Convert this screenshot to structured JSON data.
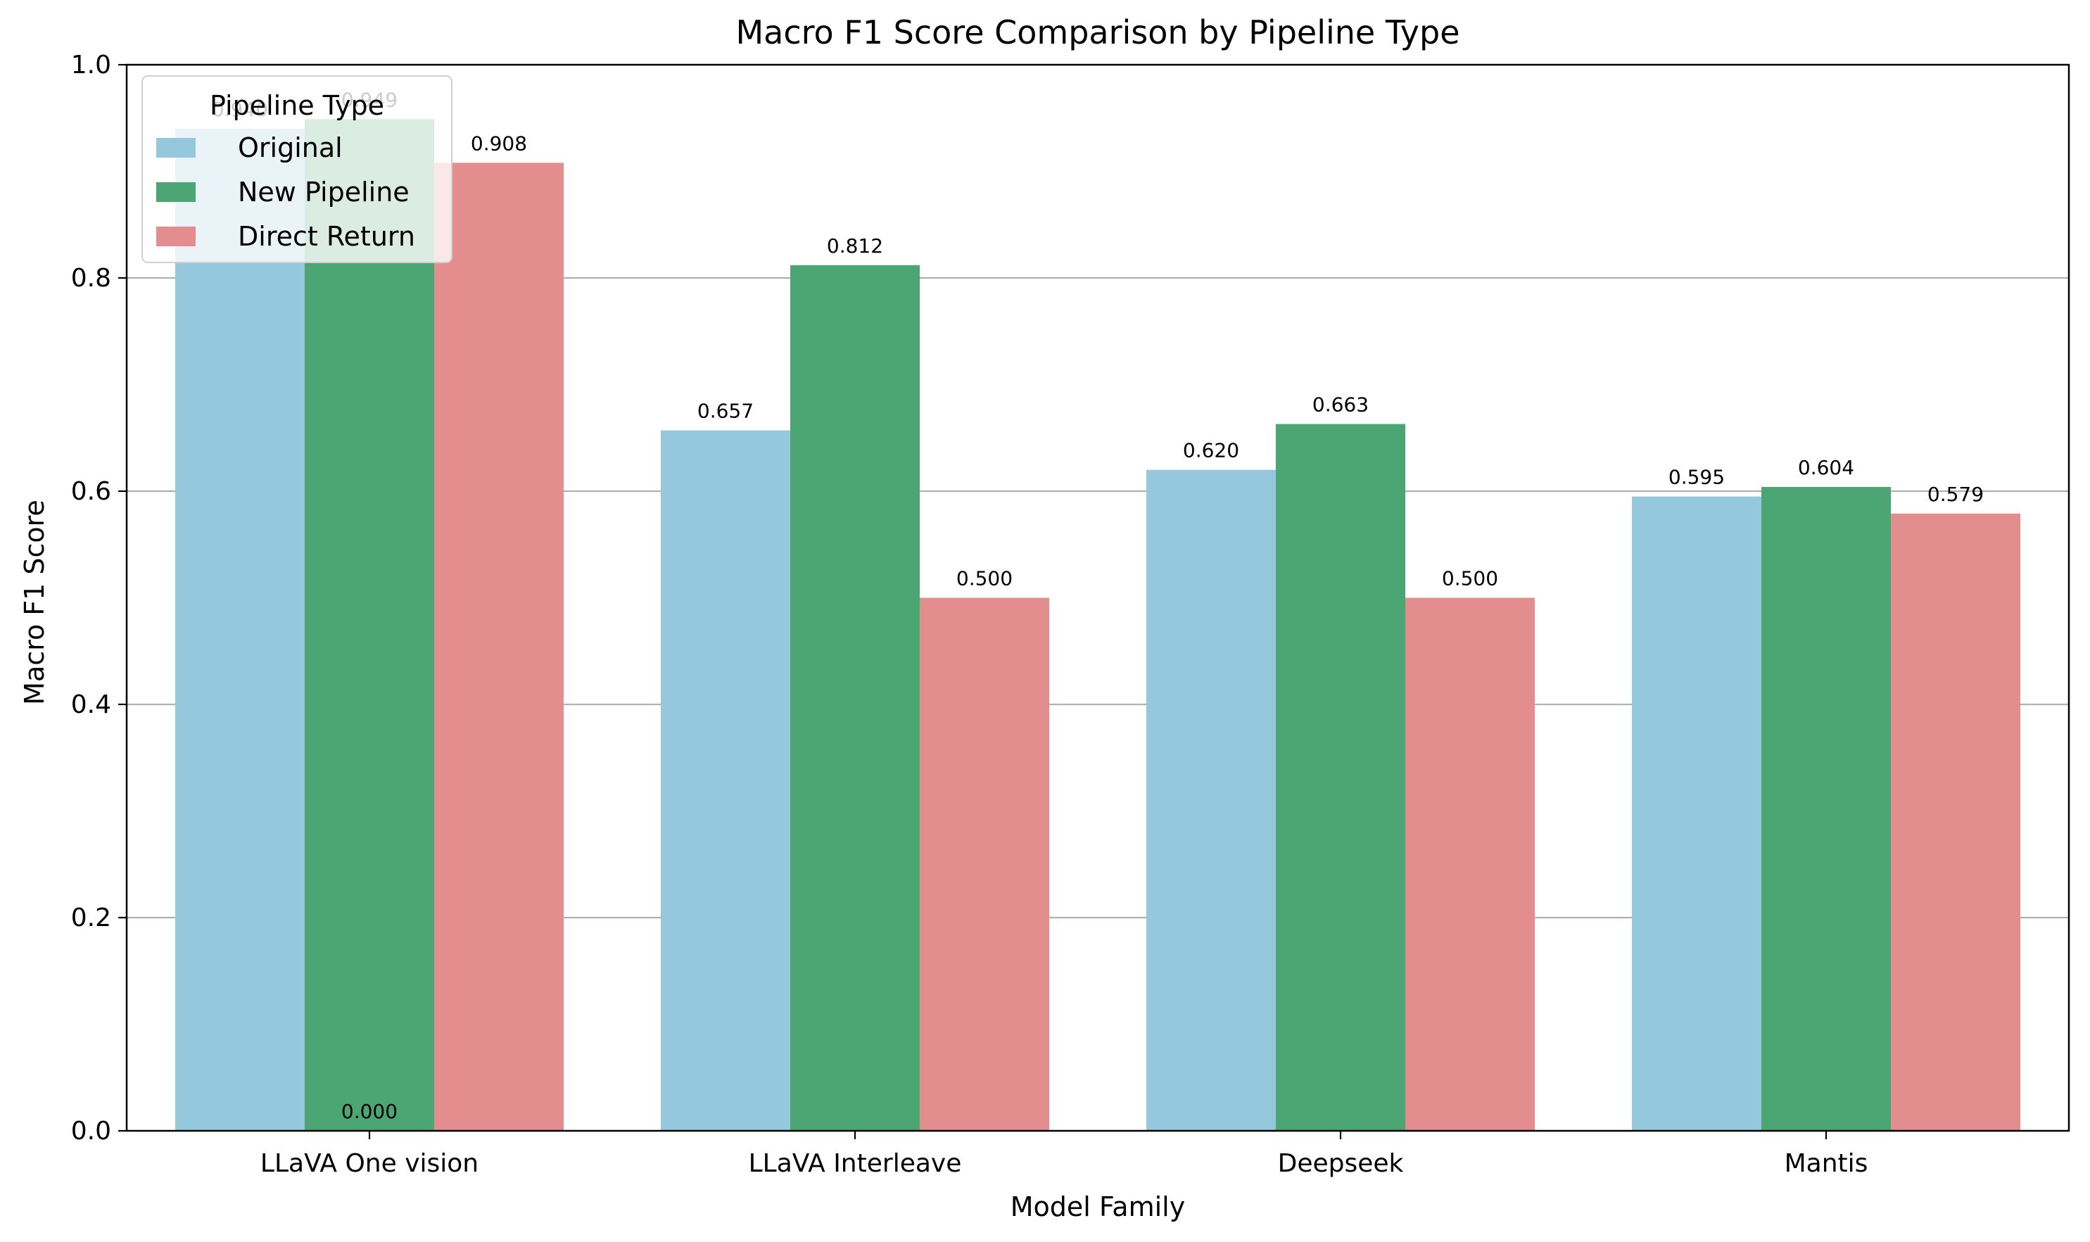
{
  "chart_data": {
    "type": "bar",
    "title": "Macro F1 Score Comparison by Pipeline Type",
    "xlabel": "Model Family",
    "ylabel": "Macro F1 Score",
    "ylim": [
      0,
      1.0
    ],
    "yticks": [
      "0.0",
      "0.2",
      "0.4",
      "0.6",
      "0.8",
      "1.0"
    ],
    "grid": "horizontal",
    "categories": [
      "LLaVA One vision",
      "LLaVA Interleave",
      "Deepseek",
      "Mantis"
    ],
    "series": [
      {
        "name": "Original",
        "color": "#95c7dd",
        "values": [
          0.94,
          0.657,
          0.62,
          0.595
        ],
        "labels": [
          "0.940",
          "0.657",
          "0.620",
          "0.595"
        ]
      },
      {
        "name": "New Pipeline",
        "color": "#4ca674",
        "values": [
          0.949,
          0.812,
          0.663,
          0.604
        ],
        "labels": [
          "0.949",
          "0.812",
          "0.663",
          "0.604"
        ]
      },
      {
        "name": "Direct Return",
        "color": "#e38d8e",
        "values": [
          0.908,
          0.5,
          0.5,
          0.579
        ],
        "labels": [
          "0.908",
          "0.500",
          "0.500",
          "0.579"
        ]
      }
    ],
    "extra_annotations": [
      {
        "text": "0.000",
        "category_index": 0,
        "series_index": 1,
        "value": 0.0
      }
    ],
    "legend": {
      "title": "Pipeline Type",
      "placement": "top-left"
    }
  }
}
